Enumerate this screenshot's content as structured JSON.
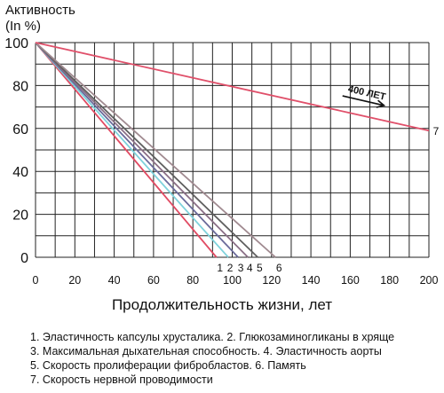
{
  "chart_data": {
    "type": "line",
    "title": "",
    "ylabel_line1": "Активность",
    "ylabel_line2": "(In %)",
    "xlabel": "Продолжительность жизни, лет",
    "xlim": [
      0,
      200
    ],
    "ylim": [
      0,
      100
    ],
    "x_ticks": [
      0,
      20,
      40,
      60,
      80,
      100,
      120,
      140,
      160,
      180,
      200
    ],
    "y_ticks": [
      0,
      20,
      40,
      60,
      80,
      100
    ],
    "grid": true,
    "series": [
      {
        "name": "1",
        "color": "#e14b63",
        "x": [
          0,
          92
        ],
        "y": [
          100,
          0
        ]
      },
      {
        "name": "2",
        "color": "#7fd2dc",
        "x": [
          0,
          98
        ],
        "y": [
          100,
          0
        ]
      },
      {
        "name": "3",
        "color": "#6a6a9a",
        "x": [
          0,
          103
        ],
        "y": [
          100,
          0
        ]
      },
      {
        "name": "4",
        "color": "#8a6f86",
        "x": [
          0,
          108
        ],
        "y": [
          100,
          0
        ]
      },
      {
        "name": "5",
        "color": "#5f5f5f",
        "x": [
          0,
          113
        ],
        "y": [
          100,
          0
        ]
      },
      {
        "name": "6",
        "color": "#a08a90",
        "x": [
          0,
          122
        ],
        "y": [
          100,
          0
        ]
      },
      {
        "name": "7",
        "color": "#e0506a",
        "x": [
          0,
          200
        ],
        "y": [
          100,
          59
        ]
      }
    ],
    "annotation": {
      "text": "400 ЛЕТ",
      "x": 160,
      "y": 76
    }
  },
  "legend_lines": [
    "1. Эластичность капсулы хрусталика.   2. Глюкозаминогликаны в хряще",
    "3. Максимальная дыхательная способность.   4. Эластичность аорты",
    "5. Скорость пролиферации фибробластов.   6. Память",
    "7. Скорость нервной проводимости"
  ]
}
